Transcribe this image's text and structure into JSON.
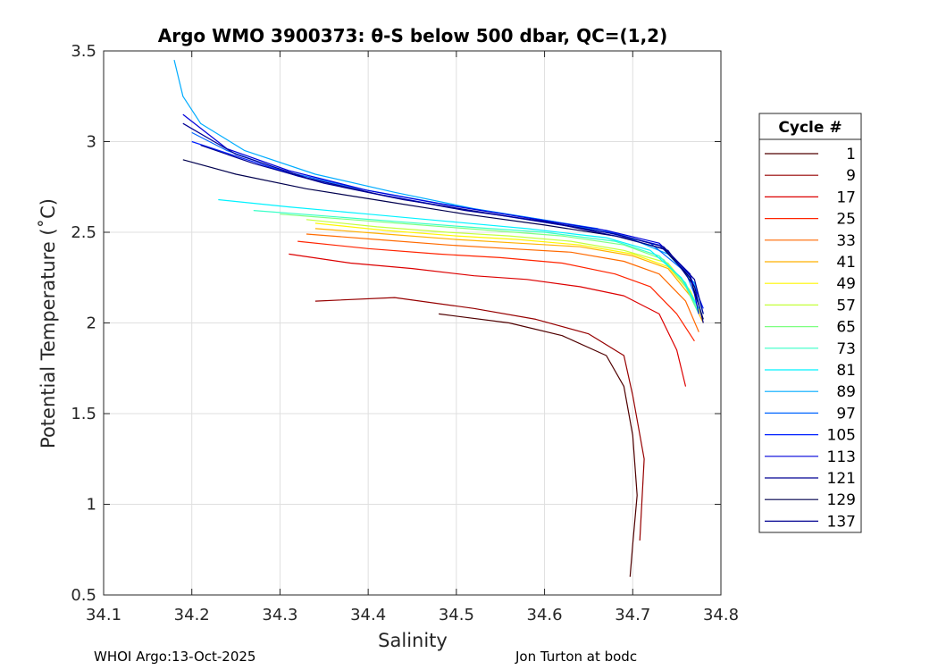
{
  "chart_data": {
    "type": "line",
    "title": "Argo WMO 3900373: θ-S below 500 dbar,  QC=(1,2)",
    "xlabel": "Salinity",
    "ylabel": "Potential Temperature (˚C)",
    "xlim": [
      34.1,
      34.8
    ],
    "ylim": [
      0.5,
      3.5
    ],
    "xticks": [
      "34.1",
      "34.2",
      "34.3",
      "34.4",
      "34.5",
      "34.6",
      "34.7",
      "34.8"
    ],
    "yticks": [
      "0.5",
      "1",
      "1.5",
      "2",
      "2.5",
      "3",
      "3.5"
    ],
    "grid": true,
    "legend": {
      "title": "Cycle #",
      "position": "right",
      "entries": [
        "1",
        "9",
        "17",
        "25",
        "33",
        "41",
        "49",
        "57",
        "65",
        "73",
        "81",
        "89",
        "97",
        "105",
        "113",
        "121",
        "129",
        "137"
      ],
      "colors": [
        "#500000",
        "#960000",
        "#dc0000",
        "#ff2400",
        "#ff6a00",
        "#ffb000",
        "#fff600",
        "#c4ff3b",
        "#7eff81",
        "#38ffc7",
        "#00f2ff",
        "#00acff",
        "#0066ff",
        "#0020ff",
        "#0000da",
        "#000094",
        "#00004e",
        "#000090"
      ]
    },
    "series": [
      {
        "name": "1",
        "color": "#500000",
        "salinity": [
          34.48,
          34.56,
          34.62,
          34.67,
          34.69,
          34.7,
          34.705,
          34.7,
          34.697
        ],
        "theta": [
          2.05,
          2.0,
          1.93,
          1.82,
          1.65,
          1.38,
          1.05,
          0.78,
          0.6
        ]
      },
      {
        "name": "9",
        "color": "#960000",
        "salinity": [
          34.34,
          34.43,
          34.52,
          34.59,
          34.65,
          34.69,
          34.7,
          34.713,
          34.708
        ],
        "theta": [
          2.12,
          2.14,
          2.08,
          2.02,
          1.94,
          1.82,
          1.6,
          1.25,
          0.8
        ]
      },
      {
        "name": "17",
        "color": "#dc0000",
        "salinity": [
          34.31,
          34.38,
          34.45,
          34.52,
          34.58,
          34.64,
          34.69,
          34.73,
          34.75,
          34.76
        ],
        "theta": [
          2.38,
          2.33,
          2.3,
          2.26,
          2.24,
          2.2,
          2.15,
          2.05,
          1.85,
          1.65
        ]
      },
      {
        "name": "25",
        "color": "#ff2400",
        "salinity": [
          34.32,
          34.4,
          34.48,
          34.55,
          34.62,
          34.68,
          34.72,
          34.75,
          34.77
        ],
        "theta": [
          2.45,
          2.41,
          2.38,
          2.36,
          2.33,
          2.27,
          2.2,
          2.05,
          1.9
        ]
      },
      {
        "name": "33",
        "color": "#ff6a00",
        "salinity": [
          34.33,
          34.41,
          34.49,
          34.56,
          34.63,
          34.69,
          34.73,
          34.76,
          34.775
        ],
        "theta": [
          2.49,
          2.46,
          2.43,
          2.41,
          2.39,
          2.34,
          2.27,
          2.12,
          1.95
        ]
      },
      {
        "name": "41",
        "color": "#ffb000",
        "salinity": [
          34.34,
          34.42,
          34.5,
          34.57,
          34.64,
          34.7,
          34.74,
          34.765,
          34.78
        ],
        "theta": [
          2.52,
          2.49,
          2.46,
          2.44,
          2.42,
          2.37,
          2.3,
          2.15,
          2.0
        ]
      },
      {
        "name": "49",
        "color": "#fff600",
        "salinity": [
          34.34,
          34.42,
          34.5,
          34.57,
          34.64,
          34.7,
          34.74,
          34.765,
          34.78
        ],
        "theta": [
          2.55,
          2.51,
          2.48,
          2.46,
          2.43,
          2.38,
          2.31,
          2.17,
          2.02
        ]
      },
      {
        "name": "57",
        "color": "#c4ff3b",
        "salinity": [
          34.33,
          34.41,
          34.49,
          34.56,
          34.63,
          34.69,
          34.74,
          34.765,
          34.78
        ],
        "theta": [
          2.57,
          2.53,
          2.5,
          2.48,
          2.45,
          2.4,
          2.33,
          2.18,
          2.02
        ]
      },
      {
        "name": "65",
        "color": "#7eff81",
        "salinity": [
          34.3,
          34.38,
          34.46,
          34.54,
          34.62,
          34.69,
          34.735,
          34.76,
          34.775
        ],
        "theta": [
          2.6,
          2.57,
          2.54,
          2.51,
          2.48,
          2.43,
          2.35,
          2.2,
          2.05
        ]
      },
      {
        "name": "73",
        "color": "#38ffc7",
        "salinity": [
          34.27,
          34.35,
          34.43,
          34.51,
          34.6,
          34.68,
          34.73,
          34.76,
          34.775
        ],
        "theta": [
          2.62,
          2.59,
          2.56,
          2.53,
          2.5,
          2.45,
          2.37,
          2.22,
          2.05
        ]
      },
      {
        "name": "81",
        "color": "#00f2ff",
        "salinity": [
          34.23,
          34.31,
          34.4,
          34.49,
          34.58,
          34.67,
          34.72,
          34.755,
          34.775
        ],
        "theta": [
          2.68,
          2.64,
          2.6,
          2.56,
          2.52,
          2.47,
          2.4,
          2.25,
          2.08
        ]
      },
      {
        "name": "89",
        "color": "#00acff",
        "salinity": [
          34.18,
          34.19,
          34.21,
          34.26,
          34.34,
          34.43,
          34.52,
          34.61,
          34.69,
          34.74,
          34.77,
          34.78
        ],
        "theta": [
          3.45,
          3.25,
          3.1,
          2.95,
          2.82,
          2.72,
          2.63,
          2.56,
          2.48,
          2.38,
          2.22,
          2.05
        ]
      },
      {
        "name": "97",
        "color": "#0066ff",
        "salinity": [
          34.2,
          34.24,
          34.31,
          34.39,
          34.48,
          34.57,
          34.66,
          34.72,
          34.76,
          34.775
        ],
        "theta": [
          3.05,
          2.95,
          2.83,
          2.74,
          2.66,
          2.59,
          2.52,
          2.44,
          2.28,
          2.1
        ]
      },
      {
        "name": "105",
        "color": "#0020ff",
        "salinity": [
          34.2,
          34.25,
          34.32,
          34.4,
          34.49,
          34.58,
          34.67,
          34.73,
          34.765,
          34.78
        ],
        "theta": [
          3.0,
          2.92,
          2.81,
          2.72,
          2.64,
          2.57,
          2.5,
          2.43,
          2.26,
          2.08
        ]
      },
      {
        "name": "113",
        "color": "#0000da",
        "salinity": [
          34.19,
          34.24,
          34.31,
          34.4,
          34.49,
          34.58,
          34.67,
          34.73,
          34.765,
          34.775
        ],
        "theta": [
          3.15,
          2.96,
          2.84,
          2.73,
          2.65,
          2.58,
          2.51,
          2.44,
          2.27,
          2.05
        ]
      },
      {
        "name": "121",
        "color": "#000094",
        "salinity": [
          34.19,
          34.25,
          34.33,
          34.42,
          34.51,
          34.6,
          34.68,
          34.735,
          34.77,
          34.78
        ],
        "theta": [
          3.1,
          2.93,
          2.8,
          2.7,
          2.62,
          2.56,
          2.49,
          2.42,
          2.24,
          2.05
        ]
      },
      {
        "name": "129",
        "color": "#00004e",
        "salinity": [
          34.19,
          34.25,
          34.33,
          34.42,
          34.51,
          34.6,
          34.68,
          34.735,
          34.765,
          34.78
        ],
        "theta": [
          2.9,
          2.82,
          2.74,
          2.67,
          2.6,
          2.54,
          2.48,
          2.41,
          2.25,
          2.02
        ]
      },
      {
        "name": "137",
        "color": "#000090",
        "salinity": [
          34.21,
          34.27,
          34.35,
          34.44,
          34.53,
          34.62,
          34.69,
          34.74,
          34.77,
          34.78
        ],
        "theta": [
          2.98,
          2.88,
          2.77,
          2.68,
          2.61,
          2.54,
          2.47,
          2.4,
          2.2,
          2.0
        ]
      }
    ]
  },
  "footer": {
    "left": "WHOI Argo:13-Oct-2025",
    "right": "Jon Turton at bodc"
  }
}
